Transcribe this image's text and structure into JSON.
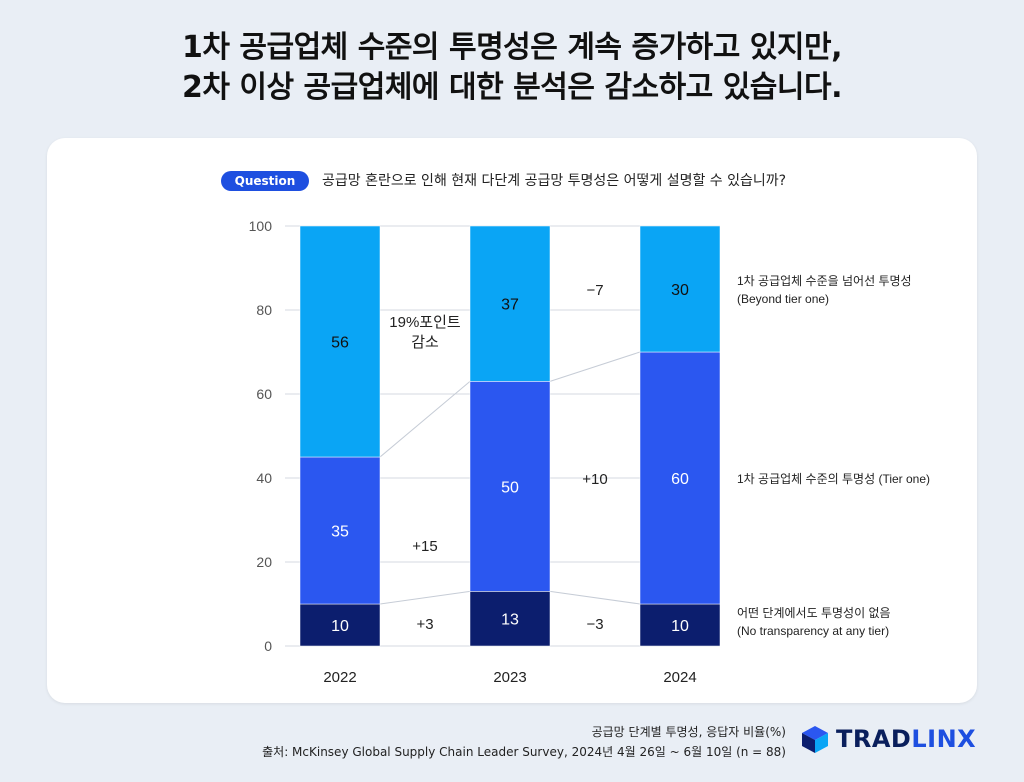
{
  "headline": {
    "line1": "1차 공급업체 수준의 투명성은 계속 증가하고 있지만,",
    "line2": "2차 이상 공급업체에 대한 분석은 감소하고 있습니다."
  },
  "question": {
    "badge": "Question",
    "text": "공급망 혼란으로 인해 현재 다단계 공급망 투명성은 어떻게 설명할 수 있습니까?"
  },
  "chart_data": {
    "type": "bar",
    "stacked": true,
    "categories": [
      "2022",
      "2023",
      "2024"
    ],
    "ylim": [
      0,
      100
    ],
    "yticks": [
      0,
      20,
      40,
      60,
      80,
      100
    ],
    "grid": true,
    "series": [
      {
        "name": "어떤 단계에서도 투명성이 없음 (No transparency at any tier)",
        "values": [
          10,
          13,
          10
        ],
        "color": "#0c1e6e",
        "label_color": "#ffffff",
        "label_line1": "어떤 단계에서도 투명성이 없음",
        "label_line2": "(No transparency at any tier)"
      },
      {
        "name": "1차 공급업체 수준의 투명성 (Tier one)",
        "values": [
          35,
          50,
          60
        ],
        "color": "#2b57f0",
        "label_color": "#ffffff",
        "label_line1": "1차 공급업체 수준의 투명성 (Tier one)",
        "label_line2": ""
      },
      {
        "name": "1차 공급업체 수준을 넘어선 투명성 (Beyond tier one)",
        "values": [
          56,
          37,
          30
        ],
        "color": "#0aa5f5",
        "label_color": "#111111",
        "label_line1": "1차 공급업체 수준을 넘어선 투명성",
        "label_line2": "(Beyond tier one)"
      }
    ],
    "annotations": [
      {
        "between": [
          0,
          1
        ],
        "series": 0,
        "text": "+3"
      },
      {
        "between": [
          0,
          1
        ],
        "series": 1,
        "text": "+15"
      },
      {
        "between": [
          0,
          1
        ],
        "series": 2,
        "text": "19%포인트",
        "text2": "감소"
      },
      {
        "between": [
          1,
          2
        ],
        "series": 0,
        "text": "−3"
      },
      {
        "between": [
          1,
          2
        ],
        "series": 1,
        "text": "+10"
      },
      {
        "between": [
          1,
          2
        ],
        "series": 2,
        "text": "−7"
      }
    ]
  },
  "footer": {
    "line1": "공급망 단계별 투명성, 응답자 비율(%)",
    "line2": "출처: McKinsey Global Supply Chain Leader Survey, 2024년 4월 26일 ~ 6월 10일 (n = 88)"
  },
  "brand": {
    "part1": "TRAD",
    "part2": "LINX",
    "color": "#0a1f5c",
    "accent": "#1e4fe0"
  }
}
